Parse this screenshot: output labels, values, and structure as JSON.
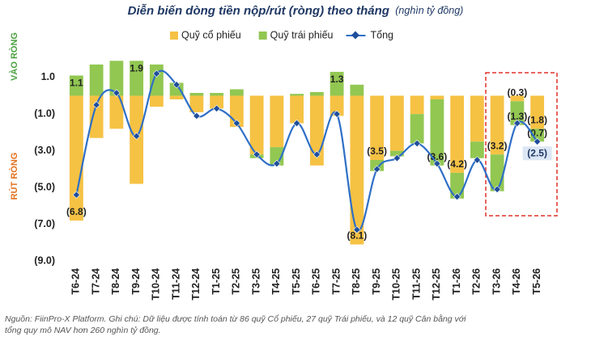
{
  "chart_data": {
    "type": "bar-line",
    "title": "Diễn biến dòng tiền nộp/rút (ròng) theo tháng",
    "subtitle": "(nghìn tỷ đồng)",
    "inflow_label": "VÀO RÒNG",
    "outflow_label": "RÚT RÒNG",
    "note": [
      "Nguồn: FiinPro-X Platform. Ghi chú: Dữ liệu được tính toán từ 86 quỹ Cổ phiếu, 27 quỹ Trái phiếu, và 12 quỹ Cân bằng với",
      "tổng quy mô NAV hơn 260 nghìn tỷ đồng."
    ],
    "categories": [
      "T6-24",
      "T7-24",
      "T8-24",
      "T9-24",
      "T10-24",
      "T11-24",
      "T12-24",
      "T1-25",
      "T2-25",
      "T3-25",
      "T4-25",
      "T5-25",
      "T6-25",
      "T7-25",
      "T8-25",
      "T9-25",
      "T10-25",
      "T11-25",
      "T12-25",
      "T1-26",
      "T2-26",
      "T3-26",
      "T4-26",
      "T5-26"
    ],
    "series": [
      {
        "name": "Quỹ cổ phiếu",
        "color": "#f6c244",
        "kind": "bar",
        "values": [
          -6.8,
          -2.3,
          -1.8,
          -4.8,
          -0.6,
          -0.2,
          -0.9,
          -0.7,
          -1.7,
          -3.2,
          -2.8,
          -1.5,
          -3.8,
          -1.1,
          -8.1,
          -3.5,
          -3.0,
          -1.0,
          -0.2,
          -4.2,
          -2.5,
          -3.2,
          -0.3,
          -1.8
        ],
        "value_labels": [
          "(6.8)",
          null,
          null,
          null,
          null,
          null,
          null,
          null,
          null,
          null,
          null,
          null,
          null,
          null,
          "(8.1)",
          "(3.5)",
          null,
          null,
          null,
          "(4.2)",
          null,
          "(3.2)",
          "(0.3)",
          "(1.8)"
        ]
      },
      {
        "name": "Quỹ trái phiếu",
        "color": "#92c752",
        "kind": "bar",
        "values": [
          1.1,
          1.7,
          1.9,
          1.9,
          1.7,
          0.7,
          0.15,
          0.15,
          0.35,
          -0.2,
          -1.0,
          0.1,
          0.2,
          1.3,
          0.6,
          -0.6,
          -0.3,
          -1.6,
          -3.6,
          -1.4,
          -0.9,
          -2.0,
          -1.3,
          -0.7
        ],
        "value_labels": [
          "1.1",
          null,
          null,
          "1.9",
          null,
          null,
          null,
          null,
          null,
          null,
          null,
          null,
          null,
          "1.3",
          null,
          null,
          null,
          null,
          "(3.6)",
          null,
          null,
          null,
          "(1.3)",
          "(0.7)"
        ]
      },
      {
        "name": "Tổng",
        "color": "#2e6fc7",
        "kind": "line",
        "values": [
          -5.4,
          -0.5,
          0.15,
          -2.2,
          1.2,
          0.6,
          -1.1,
          -0.7,
          -1.5,
          -3.2,
          -3.7,
          -1.5,
          -3.2,
          -1.0,
          -7.3,
          -4.0,
          -3.4,
          -2.6,
          -3.7,
          -5.5,
          -3.5,
          -5.1,
          -1.5,
          -2.5
        ],
        "value_labels": [
          null,
          null,
          null,
          null,
          null,
          null,
          null,
          null,
          null,
          null,
          null,
          null,
          null,
          null,
          null,
          null,
          null,
          null,
          null,
          null,
          null,
          null,
          null,
          "(2.5)"
        ]
      }
    ],
    "ylim": [
      -9,
      2
    ],
    "yticks": [
      {
        "value": 1,
        "label": "1.0"
      },
      {
        "value": -1,
        "label": "(1.0)"
      },
      {
        "value": -3,
        "label": "(3.0)"
      },
      {
        "value": -5,
        "label": "(5.0)"
      },
      {
        "value": -7,
        "label": "(7.0)"
      },
      {
        "value": -9,
        "label": "(9.0)"
      }
    ]
  }
}
